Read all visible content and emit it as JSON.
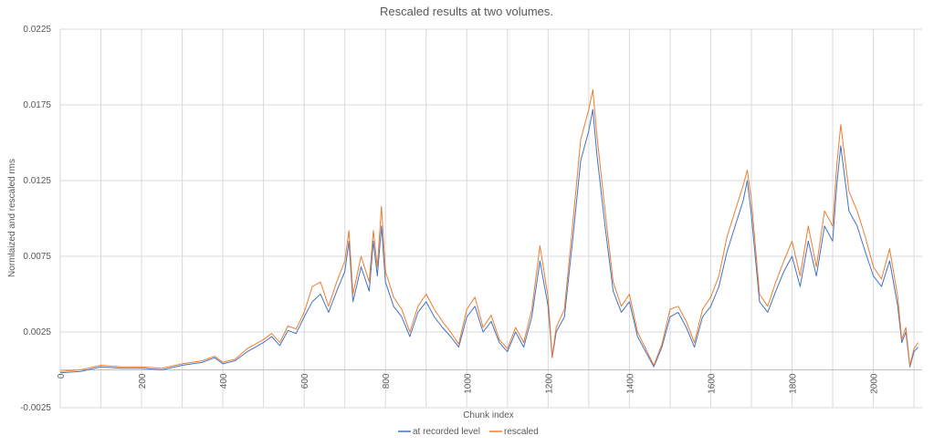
{
  "chart_data": {
    "type": "line",
    "title": "Rescaled results at two volumes.",
    "xlabel": "Chunk index",
    "ylabel": "Normlaized and rescaled rms",
    "xlim": [
      0,
      2120
    ],
    "ylim": [
      -0.0025,
      0.0225
    ],
    "x_ticks": [
      "0",
      "200",
      "400",
      "600",
      "800",
      "1000",
      "1200",
      "1400",
      "1600",
      "1800",
      "2000"
    ],
    "y_ticks": [
      "-0.0025",
      "0.0025",
      "0.0075",
      "0.0125",
      "0.0175",
      "0.0225"
    ],
    "x_tick_values": [
      0,
      200,
      400,
      600,
      800,
      1000,
      1200,
      1400,
      1600,
      1800,
      2000
    ],
    "y_tick_values": [
      -0.0025,
      0.0025,
      0.0075,
      0.0125,
      0.0175,
      0.0225
    ],
    "grid": true,
    "legend_position": "bottom",
    "x": [
      0,
      50,
      100,
      150,
      200,
      250,
      300,
      350,
      380,
      400,
      430,
      460,
      480,
      500,
      520,
      540,
      560,
      580,
      600,
      620,
      640,
      660,
      680,
      700,
      710,
      720,
      740,
      760,
      770,
      780,
      790,
      800,
      820,
      840,
      860,
      880,
      900,
      920,
      940,
      960,
      980,
      1000,
      1020,
      1040,
      1060,
      1080,
      1100,
      1120,
      1140,
      1160,
      1180,
      1200,
      1210,
      1220,
      1240,
      1260,
      1280,
      1300,
      1310,
      1320,
      1340,
      1360,
      1380,
      1400,
      1420,
      1440,
      1460,
      1480,
      1500,
      1520,
      1540,
      1560,
      1580,
      1600,
      1620,
      1640,
      1660,
      1680,
      1690,
      1700,
      1720,
      1740,
      1760,
      1780,
      1800,
      1820,
      1840,
      1860,
      1880,
      1900,
      1910,
      1920,
      1940,
      1960,
      1980,
      2000,
      2020,
      2040,
      2060,
      2070,
      2080,
      2090,
      2100,
      2110
    ],
    "series": [
      {
        "name": "at recorded level",
        "color": "#4472C4",
        "values": [
          -0.0002,
          -0.0001,
          0.0002,
          0.0001,
          0.0001,
          0.0,
          0.0003,
          0.0005,
          0.0008,
          0.0004,
          0.0006,
          0.0012,
          0.0015,
          0.0018,
          0.0022,
          0.0016,
          0.0026,
          0.0024,
          0.0035,
          0.0045,
          0.005,
          0.0038,
          0.0052,
          0.0065,
          0.0085,
          0.0045,
          0.0068,
          0.0052,
          0.0085,
          0.0062,
          0.0095,
          0.0058,
          0.0042,
          0.0035,
          0.0022,
          0.0038,
          0.0045,
          0.0035,
          0.0028,
          0.0022,
          0.0015,
          0.0035,
          0.0042,
          0.0025,
          0.0032,
          0.0018,
          0.0012,
          0.0025,
          0.0015,
          0.0035,
          0.0072,
          0.0042,
          0.0008,
          0.0025,
          0.0035,
          0.0085,
          0.0138,
          0.0158,
          0.0172,
          0.0142,
          0.0095,
          0.0052,
          0.0038,
          0.0045,
          0.0022,
          0.0012,
          0.0002,
          0.0015,
          0.0035,
          0.0038,
          0.0028,
          0.0015,
          0.0035,
          0.0042,
          0.0055,
          0.0078,
          0.0095,
          0.0112,
          0.0125,
          0.0102,
          0.0045,
          0.0038,
          0.0052,
          0.0065,
          0.0075,
          0.0055,
          0.0085,
          0.0062,
          0.0095,
          0.0085,
          0.0122,
          0.0148,
          0.0105,
          0.0095,
          0.0078,
          0.0062,
          0.0055,
          0.0072,
          0.0042,
          0.0018,
          0.0025,
          0.0002,
          0.0012,
          0.0015
        ]
      },
      {
        "name": "rescaled",
        "color": "#ED7D31",
        "values": [
          -0.0001,
          0.0,
          0.0003,
          0.0002,
          0.0002,
          0.0001,
          0.0004,
          0.0006,
          0.0009,
          0.0005,
          0.0007,
          0.0014,
          0.0017,
          0.002,
          0.0024,
          0.0018,
          0.0029,
          0.0027,
          0.0038,
          0.0055,
          0.0058,
          0.0042,
          0.0058,
          0.0072,
          0.0092,
          0.005,
          0.0075,
          0.0058,
          0.0092,
          0.0068,
          0.0108,
          0.0065,
          0.0048,
          0.004,
          0.0025,
          0.0042,
          0.005,
          0.004,
          0.0032,
          0.0025,
          0.0017,
          0.004,
          0.0048,
          0.0028,
          0.0036,
          0.002,
          0.0014,
          0.0028,
          0.0018,
          0.004,
          0.0082,
          0.0048,
          0.0009,
          0.0028,
          0.004,
          0.0095,
          0.0152,
          0.0172,
          0.0185,
          0.0155,
          0.0105,
          0.0058,
          0.0042,
          0.005,
          0.0025,
          0.0014,
          0.0003,
          0.0017,
          0.004,
          0.0042,
          0.0032,
          0.0018,
          0.004,
          0.0048,
          0.0062,
          0.0088,
          0.0105,
          0.0122,
          0.0132,
          0.0112,
          0.005,
          0.0042,
          0.0058,
          0.0072,
          0.0085,
          0.0062,
          0.0095,
          0.0068,
          0.0105,
          0.0095,
          0.0135,
          0.0162,
          0.0118,
          0.0105,
          0.0088,
          0.0068,
          0.006,
          0.008,
          0.0048,
          0.002,
          0.0028,
          0.0003,
          0.0014,
          0.0018
        ]
      }
    ]
  }
}
